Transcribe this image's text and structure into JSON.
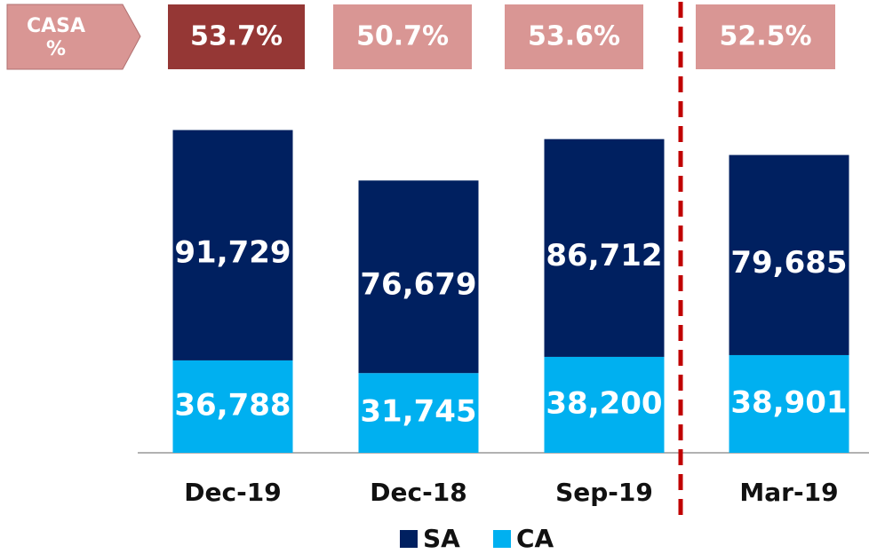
{
  "chart_data": {
    "type": "bar",
    "stacked": true,
    "categories": [
      "Dec-19",
      "Dec-18",
      "Sep-19",
      "Mar-19"
    ],
    "series": [
      {
        "name": "CA",
        "color": "#00b0f0",
        "values": [
          36788,
          31745,
          38200,
          38901
        ],
        "value_labels": [
          "36,788",
          "31,745",
          "38,200",
          "38,901"
        ]
      },
      {
        "name": "SA",
        "color": "#002060",
        "values": [
          91729,
          76679,
          86712,
          79685
        ],
        "value_labels": [
          "91,729",
          "76,679",
          "86,712",
          "79,685"
        ]
      }
    ],
    "ylim": [
      0,
      140000
    ],
    "casa_label": "CASA %",
    "casa": {
      "values": [
        53.7,
        50.7,
        53.6,
        52.5
      ],
      "value_labels": [
        "53.7%",
        "50.7%",
        "53.6%",
        "52.5%"
      ],
      "colors": [
        "#953735",
        "#d99694",
        "#d99694",
        "#d99694"
      ]
    },
    "legend_order": [
      "SA",
      "CA"
    ]
  }
}
